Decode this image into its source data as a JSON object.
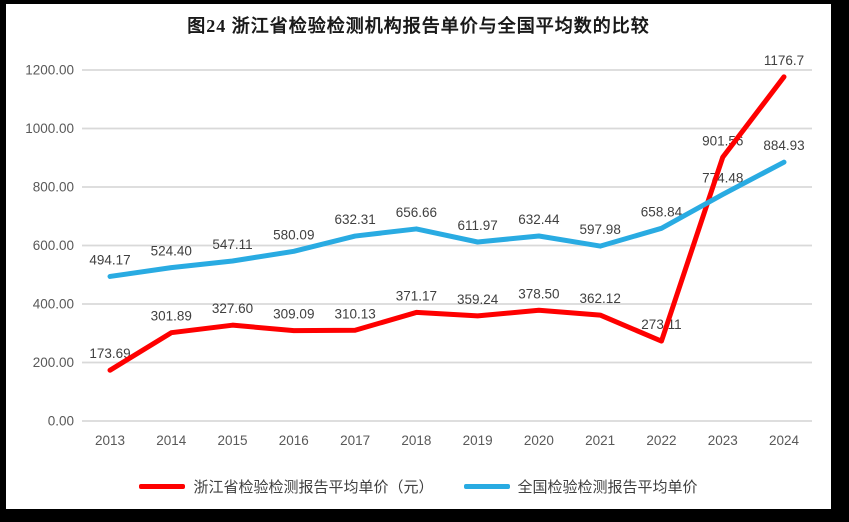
{
  "chart_data": {
    "type": "line",
    "title": "图24  浙江省检验检测机构报告单价与全国平均数的比较",
    "categories": [
      "2013",
      "2014",
      "2015",
      "2016",
      "2017",
      "2018",
      "2019",
      "2020",
      "2021",
      "2022",
      "2023",
      "2024"
    ],
    "series": [
      {
        "name": "浙江省检验检测报告平均单价（元）",
        "color": "#FE0000",
        "values": [
          173.69,
          301.89,
          327.6,
          309.09,
          310.13,
          371.17,
          359.24,
          378.5,
          362.12,
          273.11,
          901.56,
          1176.7
        ],
        "labels": [
          "173.69",
          "301.89",
          "327.60",
          "309.09",
          "310.13",
          "371.17",
          "359.24",
          "378.50",
          "362.12",
          "273.11",
          "901.56",
          "1176.7"
        ]
      },
      {
        "name": "全国检验检测报告平均单价",
        "color": "#29ABE2",
        "values": [
          494.17,
          524.4,
          547.11,
          580.09,
          632.31,
          656.66,
          611.97,
          632.44,
          597.98,
          658.84,
          774.48,
          884.93
        ],
        "labels": [
          "494.17",
          "524.40",
          "547.11",
          "580.09",
          "632.31",
          "656.66",
          "611.97",
          "632.44",
          "597.98",
          "658.84",
          "774.48",
          "884.93"
        ]
      }
    ],
    "ylim": [
      0,
      1200
    ],
    "ytick_step": 200,
    "ytick_labels": [
      "0.00",
      "200.00",
      "400.00",
      "600.00",
      "800.00",
      "1000.00",
      "1200.00"
    ],
    "grid": true,
    "legend_position": "bottom",
    "gridline_color": "#D9D9D9",
    "axis_label_color": "#595959",
    "data_label_color": "#404040"
  }
}
